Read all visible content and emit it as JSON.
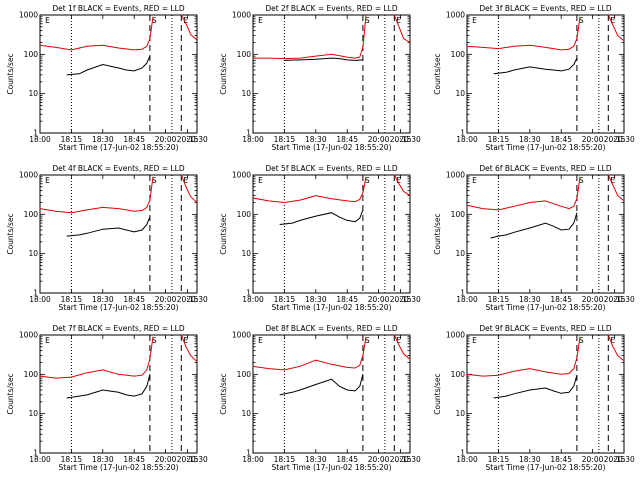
{
  "colors": {
    "black_series": "#000000",
    "red_series": "#e00000",
    "background": "#ffffff"
  },
  "chart_data": {
    "type": "line",
    "layout": "3x3 grid of detector light curves",
    "xlabel": "Start Time (17-Jun-02 18:55:20)",
    "ylabel": "Counts/sec",
    "yscale": "log",
    "ylim": [
      1,
      1000
    ],
    "y_ticks": [
      "1",
      "10",
      "100",
      "1000"
    ],
    "x_ticks": [
      "18:00",
      "18:15",
      "18:30",
      "18:45",
      "20:00",
      "20:15",
      "20:30"
    ],
    "x_tick_positions": [
      0,
      0.2,
      0.4,
      0.6,
      0.8,
      0.94,
      1.0
    ],
    "markers": [
      {
        "label": "E",
        "type": "none",
        "pos": 0.02
      },
      {
        "label": "",
        "type": "dotted",
        "pos": 0.2
      },
      {
        "label": "S",
        "type": "dashed",
        "pos": 0.7
      },
      {
        "label": "",
        "type": "dotted",
        "pos": 0.84
      },
      {
        "label": "E",
        "type": "dashed",
        "pos": 0.9
      }
    ],
    "panels": [
      {
        "title": "Det 1f BLACK = Events, RED = LLD",
        "black": {
          "x": [
            0.17,
            0.25,
            0.3,
            0.4,
            0.5,
            0.55,
            0.6,
            0.65,
            0.68,
            0.7
          ],
          "y": [
            30,
            32,
            40,
            55,
            45,
            40,
            38,
            45,
            60,
            90
          ]
        },
        "red": {
          "x": [
            0,
            0.1,
            0.2,
            0.3,
            0.4,
            0.5,
            0.6,
            0.65,
            0.68,
            0.7,
            0.72
          ],
          "y": [
            170,
            150,
            130,
            160,
            170,
            145,
            130,
            135,
            160,
            250,
            900
          ],
          "x2": [
            0.9,
            0.93,
            0.96,
            1.0
          ],
          "y2": [
            1000,
            600,
            320,
            230
          ]
        }
      },
      {
        "title": "Det 2f BLACK = Events, RED = LLD",
        "black": {
          "x": [
            0.2,
            0.3,
            0.4,
            0.5,
            0.55,
            0.6,
            0.65,
            0.7
          ],
          "y": [
            70,
            72,
            75,
            80,
            78,
            72,
            70,
            72
          ]
        },
        "red": {
          "x": [
            0,
            0.1,
            0.2,
            0.3,
            0.4,
            0.5,
            0.6,
            0.65,
            0.68,
            0.7,
            0.72
          ],
          "y": [
            80,
            80,
            78,
            80,
            90,
            100,
            85,
            80,
            85,
            150,
            1000
          ],
          "x2": [
            0.9,
            0.93,
            0.96,
            1.0
          ],
          "y2": [
            1000,
            500,
            250,
            200
          ]
        }
      },
      {
        "title": "Det 3f BLACK = Events, RED = LLD",
        "black": {
          "x": [
            0.17,
            0.25,
            0.3,
            0.4,
            0.5,
            0.55,
            0.6,
            0.65,
            0.68,
            0.7
          ],
          "y": [
            32,
            35,
            40,
            48,
            42,
            40,
            38,
            42,
            55,
            80
          ]
        },
        "red": {
          "x": [
            0,
            0.1,
            0.2,
            0.3,
            0.4,
            0.5,
            0.6,
            0.65,
            0.68,
            0.7,
            0.72
          ],
          "y": [
            160,
            150,
            140,
            160,
            170,
            150,
            130,
            135,
            160,
            250,
            900
          ],
          "x2": [
            0.9,
            0.93,
            0.96,
            1.0
          ],
          "y2": [
            1000,
            550,
            300,
            220
          ]
        }
      },
      {
        "title": "Det 4f BLACK = Events, RED = LLD",
        "black": {
          "x": [
            0.17,
            0.25,
            0.3,
            0.4,
            0.5,
            0.55,
            0.6,
            0.65,
            0.68,
            0.7
          ],
          "y": [
            28,
            30,
            33,
            42,
            45,
            40,
            36,
            40,
            55,
            85
          ]
        },
        "red": {
          "x": [
            0,
            0.1,
            0.2,
            0.3,
            0.4,
            0.5,
            0.6,
            0.65,
            0.68,
            0.7,
            0.72
          ],
          "y": [
            140,
            120,
            110,
            130,
            150,
            140,
            120,
            125,
            150,
            230,
            900
          ],
          "x2": [
            0.9,
            0.93,
            0.96,
            1.0
          ],
          "y2": [
            1000,
            500,
            280,
            200
          ]
        }
      },
      {
        "title": "Det 5f BLACK = Events, RED = LLD",
        "black": {
          "x": [
            0.17,
            0.25,
            0.3,
            0.4,
            0.5,
            0.55,
            0.6,
            0.65,
            0.68,
            0.7
          ],
          "y": [
            55,
            60,
            70,
            90,
            110,
            85,
            70,
            65,
            80,
            130
          ]
        },
        "red": {
          "x": [
            0,
            0.1,
            0.2,
            0.3,
            0.4,
            0.5,
            0.6,
            0.65,
            0.68,
            0.7,
            0.72
          ],
          "y": [
            260,
            220,
            200,
            230,
            300,
            250,
            220,
            210,
            240,
            350,
            900
          ],
          "x2": [
            0.9,
            0.93,
            0.96,
            1.0
          ],
          "y2": [
            1000,
            600,
            380,
            300
          ]
        }
      },
      {
        "title": "Det 6f BLACK = Events, RED = LLD",
        "black": {
          "x": [
            0.15,
            0.2,
            0.25,
            0.3,
            0.4,
            0.5,
            0.55,
            0.6,
            0.65,
            0.68,
            0.7
          ],
          "y": [
            25,
            28,
            30,
            35,
            45,
            60,
            50,
            40,
            42,
            60,
            110
          ]
        },
        "red": {
          "x": [
            0,
            0.1,
            0.2,
            0.3,
            0.4,
            0.5,
            0.6,
            0.65,
            0.68,
            0.7,
            0.72
          ],
          "y": [
            170,
            140,
            130,
            160,
            200,
            220,
            160,
            140,
            160,
            250,
            900
          ],
          "x2": [
            0.9,
            0.93,
            0.96,
            1.0
          ],
          "y2": [
            1000,
            550,
            300,
            220
          ]
        }
      },
      {
        "title": "Det 7f BLACK = Events, RED = LLD",
        "black": {
          "x": [
            0.17,
            0.25,
            0.3,
            0.4,
            0.5,
            0.55,
            0.6,
            0.65,
            0.68,
            0.7
          ],
          "y": [
            25,
            28,
            30,
            40,
            35,
            30,
            28,
            32,
            50,
            100
          ]
        },
        "red": {
          "x": [
            0,
            0.1,
            0.2,
            0.3,
            0.4,
            0.5,
            0.6,
            0.65,
            0.68,
            0.7,
            0.72
          ],
          "y": [
            90,
            80,
            85,
            110,
            130,
            100,
            90,
            95,
            130,
            250,
            900
          ],
          "x2": [
            0.9,
            0.93,
            0.96,
            1.0
          ],
          "y2": [
            1000,
            500,
            300,
            210
          ]
        }
      },
      {
        "title": "Det 8f BLACK = Events, RED = LLD",
        "black": {
          "x": [
            0.17,
            0.25,
            0.3,
            0.4,
            0.5,
            0.55,
            0.6,
            0.65,
            0.68,
            0.7
          ],
          "y": [
            30,
            35,
            40,
            55,
            75,
            50,
            40,
            38,
            50,
            100
          ]
        },
        "red": {
          "x": [
            0,
            0.1,
            0.2,
            0.3,
            0.4,
            0.5,
            0.6,
            0.65,
            0.68,
            0.7,
            0.72
          ],
          "y": [
            160,
            140,
            130,
            160,
            230,
            180,
            150,
            145,
            170,
            300,
            900
          ],
          "x2": [
            0.9,
            0.93,
            0.96,
            1.0
          ],
          "y2": [
            1000,
            550,
            330,
            240
          ]
        }
      },
      {
        "title": "Det 9f BLACK = Events, RED = LLD",
        "black": {
          "x": [
            0.17,
            0.25,
            0.3,
            0.4,
            0.5,
            0.55,
            0.6,
            0.65,
            0.68,
            0.7
          ],
          "y": [
            25,
            28,
            32,
            40,
            45,
            38,
            33,
            35,
            50,
            95
          ]
        },
        "red": {
          "x": [
            0,
            0.1,
            0.2,
            0.3,
            0.4,
            0.5,
            0.6,
            0.65,
            0.68,
            0.7,
            0.72
          ],
          "y": [
            100,
            90,
            95,
            120,
            140,
            115,
            100,
            105,
            140,
            260,
            900
          ],
          "x2": [
            0.9,
            0.93,
            0.96,
            1.0
          ],
          "y2": [
            1000,
            500,
            300,
            220
          ]
        }
      }
    ]
  }
}
